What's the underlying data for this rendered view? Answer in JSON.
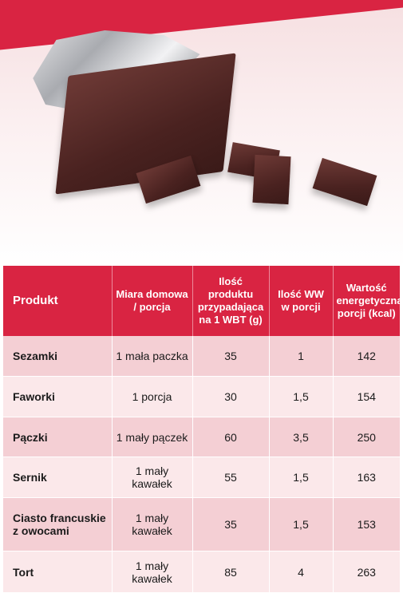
{
  "colors": {
    "header_bg": "#d92442",
    "row_dark": "#f4cfd4",
    "row_light": "#fbe8ea"
  },
  "image": {
    "subject": "chocolate-bar-in-foil"
  },
  "table": {
    "headers": [
      "Produkt",
      "Miara domowa / porcja",
      "Ilość produktu przypadająca na 1 WBT (g)",
      "Ilość WW w porcji",
      "Wartość energetyczna porcji (kcal)"
    ],
    "rows": [
      {
        "produkt": "Sezamki",
        "miara": "1 mała paczka",
        "ilosc": "35",
        "ww": "1",
        "kcal": "142"
      },
      {
        "produkt": "Faworki",
        "miara": "1 porcja",
        "ilosc": "30",
        "ww": "1,5",
        "kcal": "154"
      },
      {
        "produkt": "Pączki",
        "miara": "1 mały pączek",
        "ilosc": "60",
        "ww": "3,5",
        "kcal": "250"
      },
      {
        "produkt": "Sernik",
        "miara": "1 mały kawałek",
        "ilosc": "55",
        "ww": "1,5",
        "kcal": "163"
      },
      {
        "produkt": "Ciasto francuskie z owocami",
        "miara": "1 mały kawałek",
        "ilosc": "35",
        "ww": "1,5",
        "kcal": "153"
      },
      {
        "produkt": "Tort",
        "miara": "1 mały kawałek",
        "ilosc": "85",
        "ww": "4",
        "kcal": "263"
      }
    ]
  }
}
